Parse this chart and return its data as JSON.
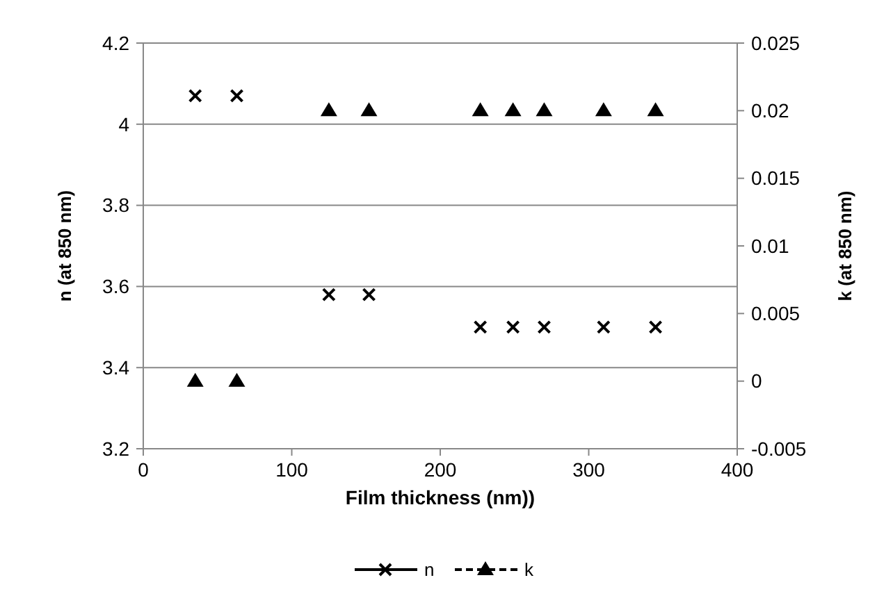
{
  "chart_data": {
    "type": "scatter",
    "xlabel": "Film thickness (nm))",
    "ylabel": "n  (at 850 nm)",
    "y2label": "k (at 850 nm)",
    "xlim": [
      0,
      400
    ],
    "xticks": [
      0,
      100,
      200,
      300,
      400
    ],
    "ylim": [
      3.2,
      4.2
    ],
    "yticks": [
      3.2,
      3.4,
      3.6,
      3.8,
      4,
      4.2
    ],
    "y2lim": [
      -0.005,
      0.025
    ],
    "y2ticks": [
      -0.005,
      0,
      0.005,
      0.01,
      0.015,
      0.02,
      0.025
    ],
    "grid": "y",
    "legend": "bottom",
    "series": [
      {
        "name": "n",
        "color": "#000000",
        "marker": "cross",
        "line_style": "solid",
        "x": [
          35,
          63,
          125,
          152,
          227,
          249,
          270,
          310,
          345
        ],
        "values": [
          4.07,
          4.07,
          3.58,
          3.58,
          3.5,
          3.5,
          3.5,
          3.5,
          3.5
        ]
      },
      {
        "name": "k",
        "color": "#000000",
        "marker": "triangle",
        "line_style": "dashed",
        "axis": "y2",
        "x": [
          35,
          63,
          125,
          152,
          227,
          249,
          270,
          310,
          345
        ],
        "values": [
          0,
          0,
          0.02,
          0.02,
          0.02,
          0.02,
          0.02,
          0.02,
          0.02
        ]
      }
    ]
  }
}
